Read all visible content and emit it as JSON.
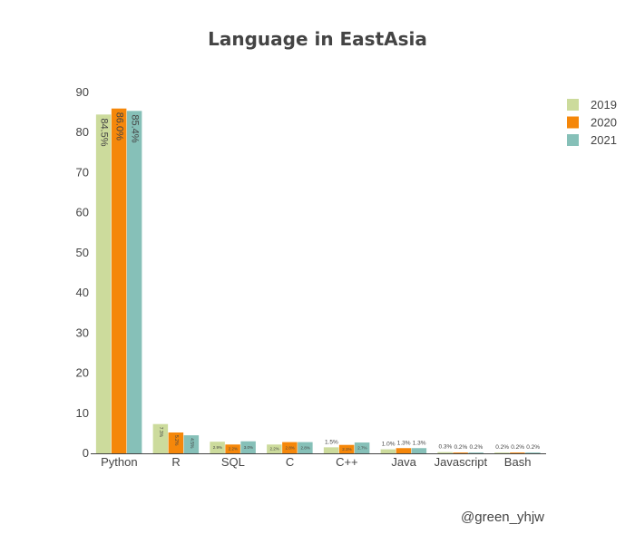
{
  "chart_data": {
    "type": "bar",
    "title": "Language in EastAsia",
    "xlabel": "",
    "ylabel": "",
    "categories": [
      "Python",
      "R",
      "SQL",
      "C",
      "C++",
      "Java",
      "Javascript",
      "Bash"
    ],
    "series": [
      {
        "name": "2019",
        "color": "#ccdb9c",
        "values": [
          84.5,
          7.3,
          2.9,
          2.2,
          1.5,
          1.0,
          0.3,
          0.2
        ],
        "labels": [
          "84.5%",
          "7.3%",
          "2.9%",
          "2.2%",
          "1.5%",
          "1.0%",
          "0.3%",
          "0.2%"
        ]
      },
      {
        "name": "2020",
        "color": "#f5870a",
        "values": [
          86.0,
          5.2,
          2.2,
          2.8,
          2.1,
          1.3,
          0.2,
          0.2
        ],
        "labels": [
          "86.0%",
          "5.2%",
          "2.2%",
          "2.8%",
          "2.1%",
          "1.3%",
          "0.2%",
          "0.2%"
        ]
      },
      {
        "name": "2021",
        "color": "#86c0b8",
        "values": [
          85.4,
          4.5,
          3.0,
          2.8,
          2.7,
          1.3,
          0.2,
          0.2
        ],
        "labels": [
          "85.4%",
          "4.5%",
          "3.0%",
          "2.8%",
          "2.7%",
          "1.3%",
          "0.2%",
          "0.2%"
        ]
      }
    ],
    "ylim": [
      0,
      90
    ],
    "yticks": [
      0,
      10,
      20,
      30,
      40,
      50,
      60,
      70,
      80,
      90
    ],
    "grid": false,
    "legend_position": "top-right",
    "bar_label_position": "inside-or-outside-auto",
    "annotation": "@green_yhjw"
  }
}
